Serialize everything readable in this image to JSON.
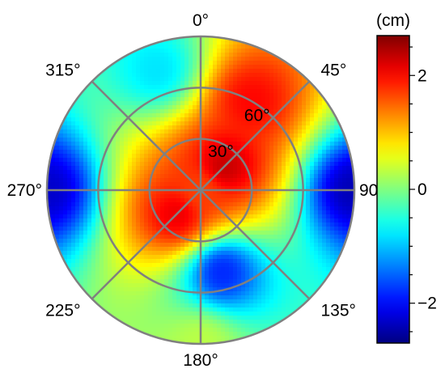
{
  "chart_data": {
    "type": "heatmap",
    "projection": "polar",
    "colormap": "jet",
    "grid": true,
    "azimuth_labels": [
      {
        "angle": 0,
        "text": "0°"
      },
      {
        "angle": 45,
        "text": "45°"
      },
      {
        "angle": 90,
        "text": "90°"
      },
      {
        "angle": 135,
        "text": "135°"
      },
      {
        "angle": 180,
        "text": "180°"
      },
      {
        "angle": 225,
        "text": "225°"
      },
      {
        "angle": 270,
        "text": "270°"
      },
      {
        "angle": 315,
        "text": "315°"
      }
    ],
    "elevation_labels": [
      {
        "value": 30,
        "text": "30°"
      },
      {
        "value": 60,
        "text": "60°"
      }
    ],
    "radial_range": [
      0,
      90
    ],
    "colorbar": {
      "unit": "(cm)",
      "range": [
        -2.7,
        2.7
      ],
      "ticks": [
        {
          "value": 2,
          "text": "2"
        },
        {
          "value": 0,
          "text": "0"
        },
        {
          "value": -2,
          "text": "−2"
        }
      ]
    },
    "field_description_points": [
      {
        "az": 45,
        "el": 0,
        "value": 1.7
      },
      {
        "az": 45,
        "el": 20,
        "value": 2.3
      },
      {
        "az": 30,
        "el": 60,
        "value": 2.0
      },
      {
        "az": 225,
        "el": 20,
        "value": 2.1
      },
      {
        "az": 90,
        "el": 90,
        "value": -2.4
      },
      {
        "az": 270,
        "el": 90,
        "value": -2.3
      },
      {
        "az": 165,
        "el": 50,
        "value": -1.8
      },
      {
        "az": 180,
        "el": 90,
        "value": 0.3
      },
      {
        "az": 340,
        "el": 75,
        "value": -0.8
      }
    ]
  }
}
